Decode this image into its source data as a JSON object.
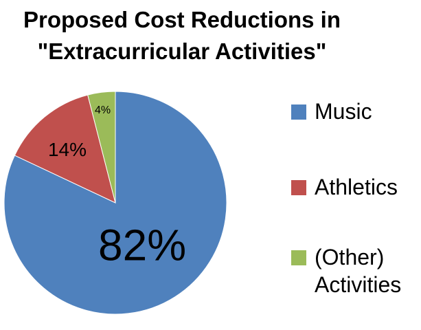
{
  "chart_data": {
    "type": "pie",
    "title": "Proposed Cost Reductions in \"Extracurricular Activities\"",
    "title_lines": [
      "Proposed Cost Reductions in",
      "\"Extracurricular Activities\""
    ],
    "categories": [
      "Music",
      "Athletics",
      "(Other) Activities"
    ],
    "values": [
      82,
      14,
      4
    ],
    "unit": "%",
    "data_labels": [
      "82%",
      "14%",
      "4%"
    ],
    "colors": [
      "#4F81BD",
      "#C0504D",
      "#9BBB59"
    ],
    "legend": {
      "placement": "right",
      "entries": [
        {
          "lines": [
            "Music"
          ]
        },
        {
          "lines": [
            "Athletics"
          ]
        },
        {
          "lines": [
            "(Other)",
            "Activities"
          ]
        }
      ]
    }
  }
}
